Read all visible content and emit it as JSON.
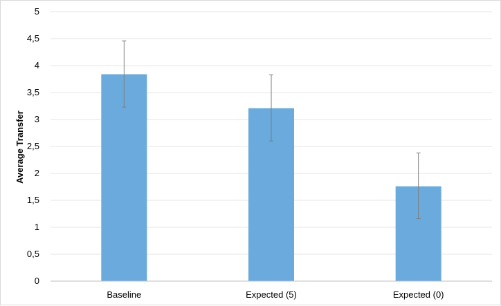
{
  "chart_data": {
    "type": "bar",
    "title": "",
    "xlabel": "",
    "ylabel": "Average Transfer",
    "categories": [
      "Baseline",
      "Expected (5)",
      "Expected (0)"
    ],
    "values": [
      3.84,
      3.21,
      1.76
    ],
    "error_low": [
      3.23,
      2.6,
      1.16
    ],
    "error_high": [
      4.46,
      3.83,
      2.38
    ],
    "ylim": [
      0,
      5
    ],
    "yticks": [
      0,
      0.5,
      1,
      1.5,
      2,
      2.5,
      3,
      3.5,
      4,
      4.5,
      5
    ],
    "ytick_labels": [
      "0",
      "0,5",
      "1",
      "1,5",
      "2",
      "2,5",
      "3",
      "3,5",
      "4",
      "4,5",
      "5"
    ],
    "grid": true,
    "legend": "none",
    "colors": {
      "bar": "#6aaadc",
      "grid": "#e6e6e6",
      "axis": "#bfbfbf",
      "error": "#7f7f7f"
    }
  }
}
